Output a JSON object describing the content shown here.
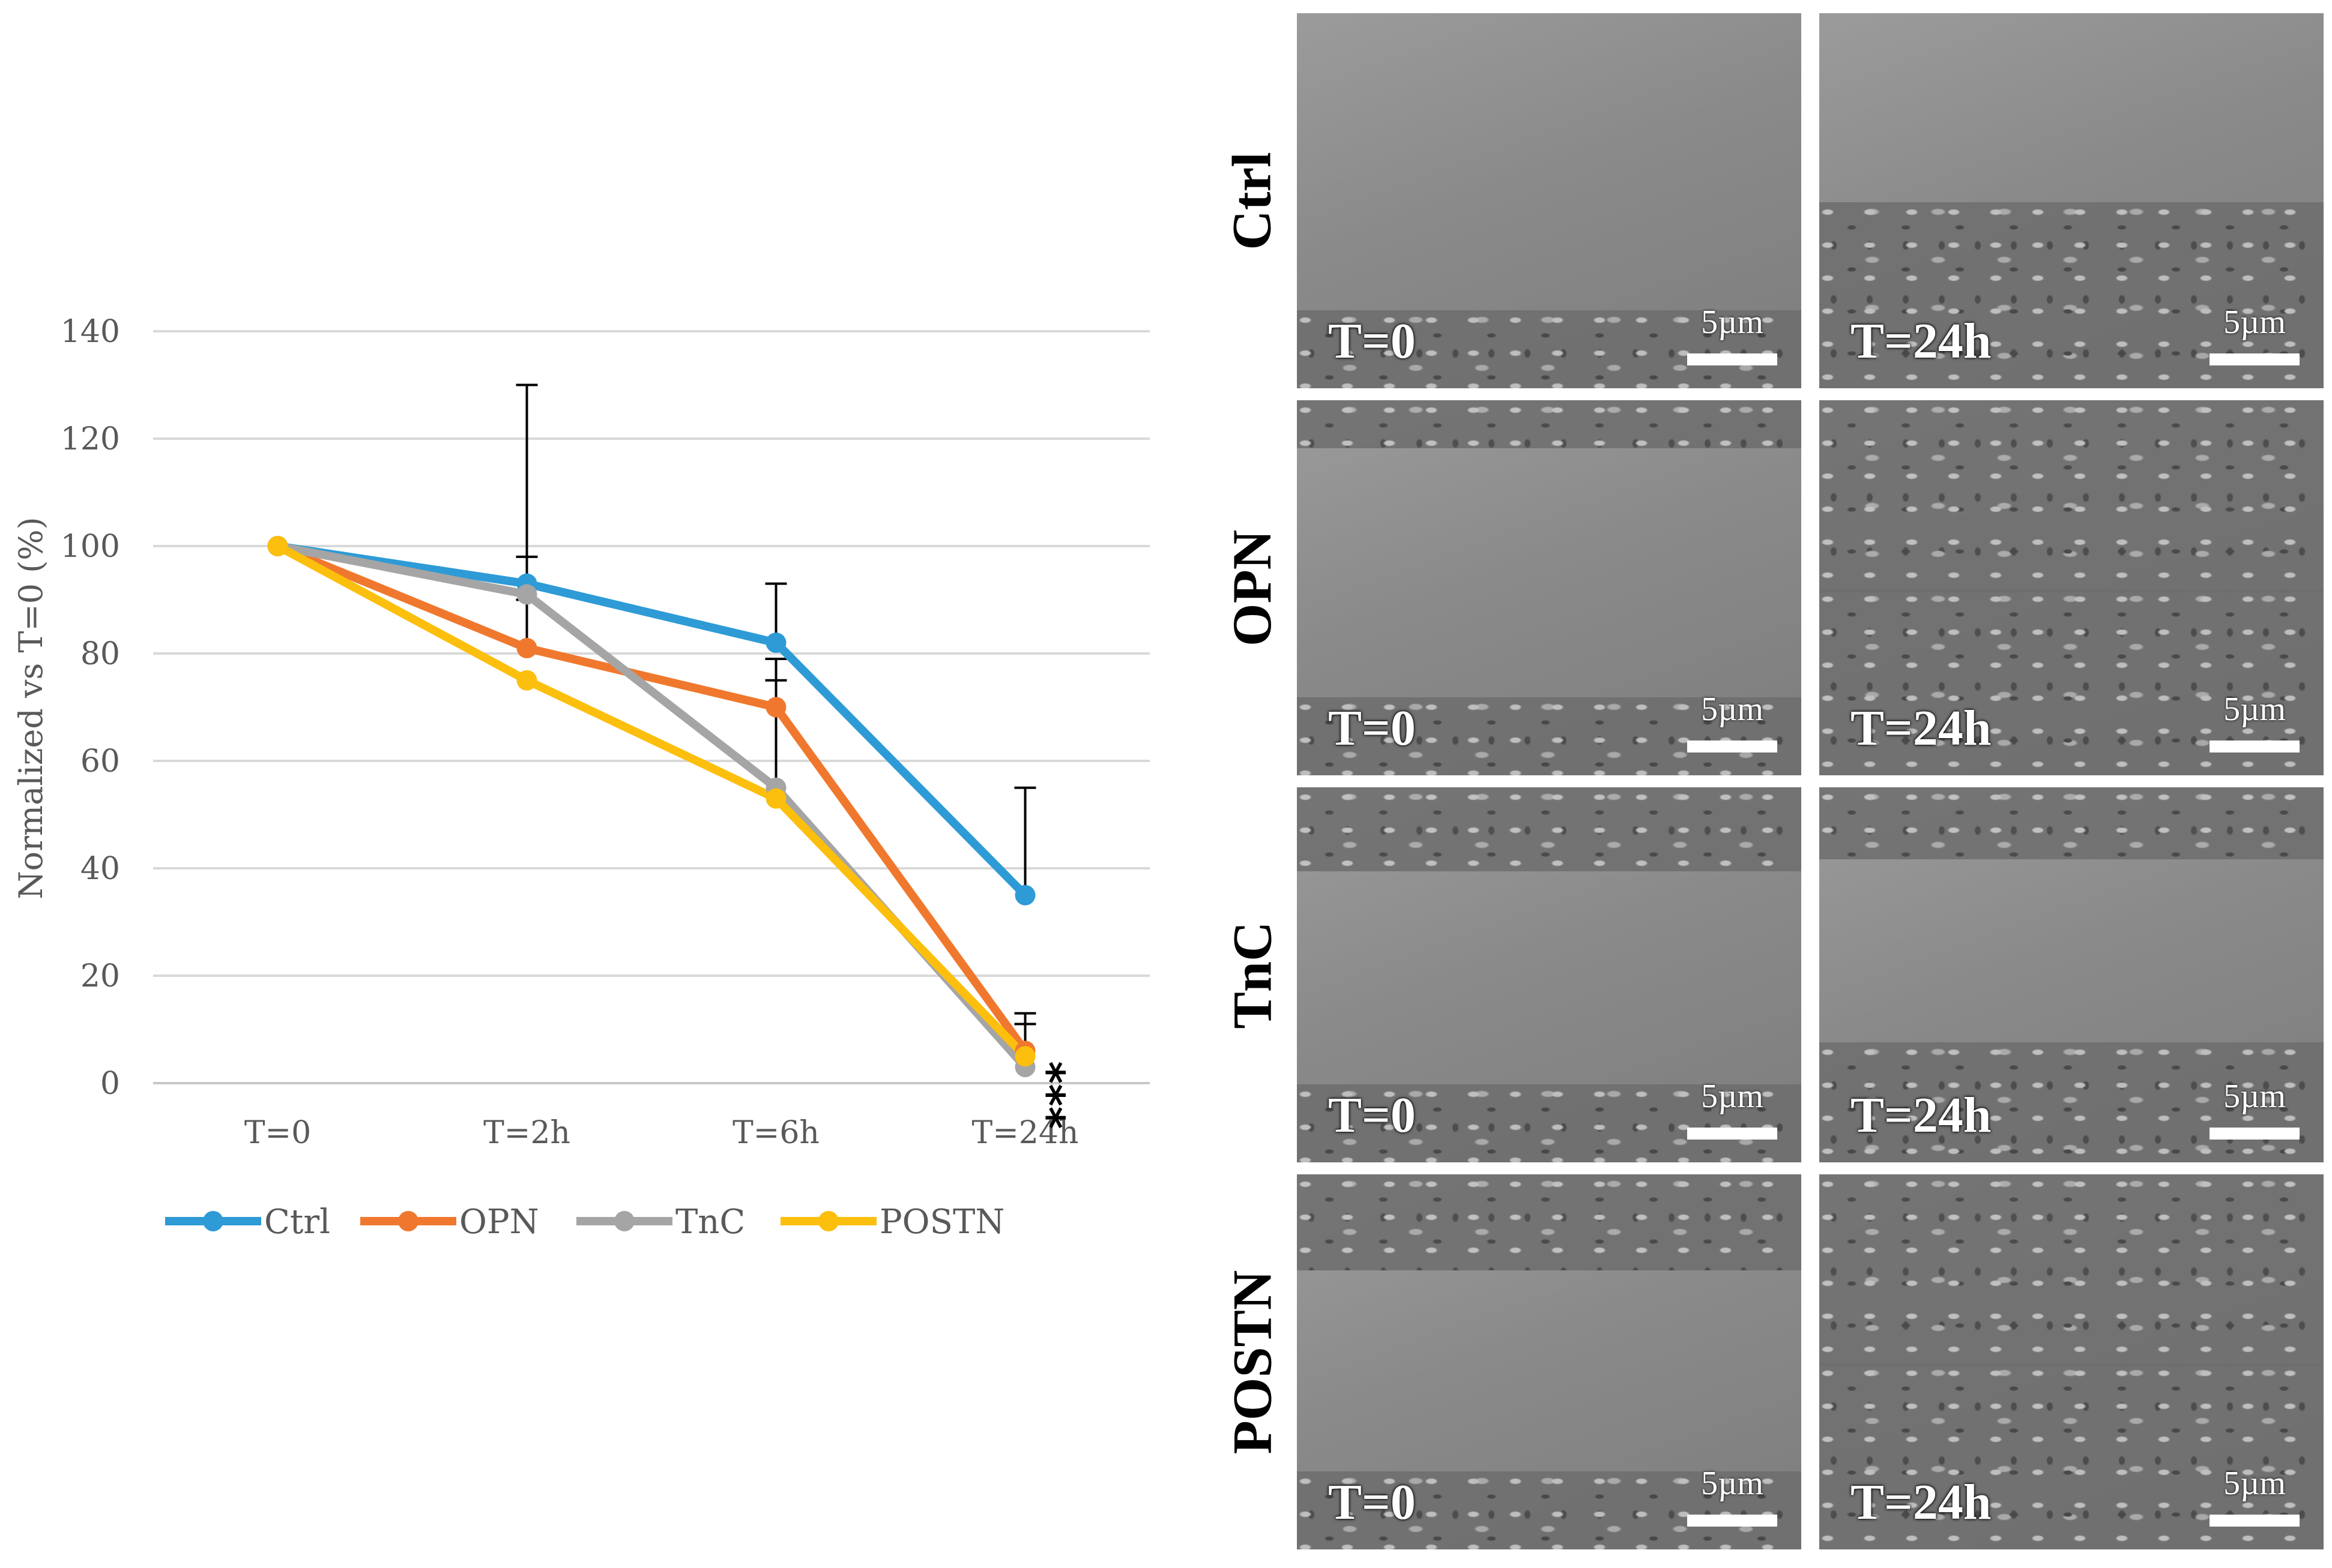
{
  "chart_data": {
    "type": "line",
    "title": "",
    "xlabel": "",
    "ylabel": "Normalized vs T=0 (%)",
    "categories": [
      "T=0",
      "T=2h",
      "T=6h",
      "T=24h"
    ],
    "ylim": [
      0,
      140
    ],
    "yticks": [
      0,
      20,
      40,
      60,
      80,
      100,
      120,
      140
    ],
    "grid": true,
    "legend_position": "bottom",
    "series": [
      {
        "name": "Ctrl",
        "color": "#2e9bd6",
        "values": [
          100,
          93,
          82,
          35
        ],
        "error": [
          0,
          37,
          11,
          20
        ]
      },
      {
        "name": "OPN",
        "color": "#f0782e",
        "values": [
          100,
          81,
          70,
          6
        ],
        "error": [
          0,
          9,
          9,
          7
        ]
      },
      {
        "name": "TnC",
        "color": "#a5a5a5",
        "values": [
          100,
          91,
          55,
          3
        ],
        "error": [
          0,
          7,
          20,
          8
        ]
      },
      {
        "name": "POSTN",
        "color": "#fcbf0d",
        "values": [
          100,
          75,
          53,
          5
        ],
        "error": [
          0,
          0,
          0,
          0
        ]
      }
    ],
    "annotation": "***"
  },
  "panels": {
    "rows": [
      "Ctrl",
      "OPN",
      "TnC",
      "POSTN"
    ],
    "time_labels": [
      "T=0",
      "T=24h"
    ],
    "scale_label": "5µm"
  }
}
